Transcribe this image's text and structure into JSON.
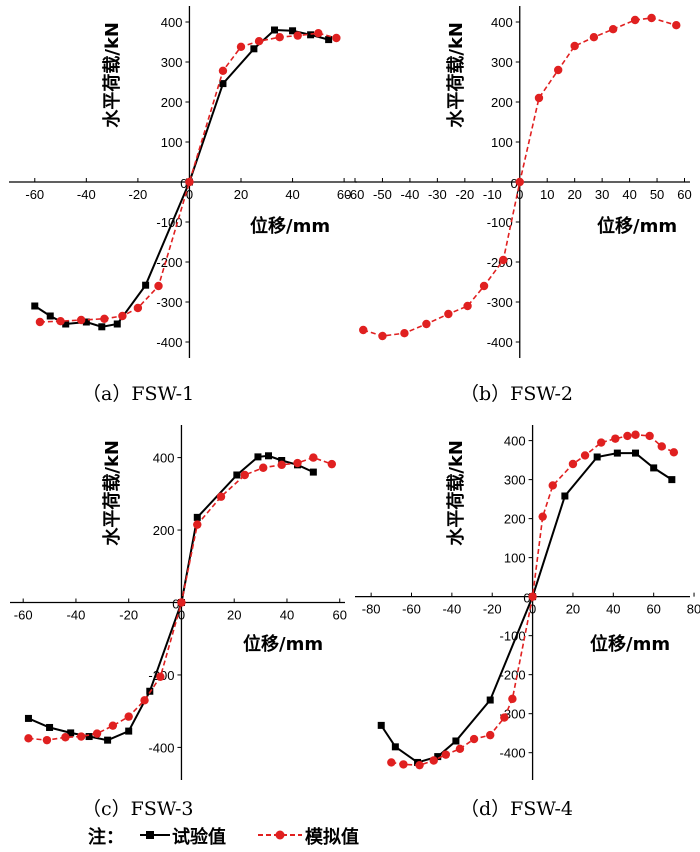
{
  "chart_data": [
    {
      "type": "line",
      "caption": "（a）FSW-1",
      "xlabel": "位移/mm",
      "ylabel": "水平荷载/kN",
      "xlim": [
        -70,
        65
      ],
      "ylim": [
        -440,
        440
      ],
      "xticks": [
        -60,
        -40,
        -20,
        0,
        20,
        40,
        60
      ],
      "yticks": [
        -400,
        -300,
        -200,
        -100,
        0,
        100,
        200,
        300,
        400
      ],
      "series": [
        {
          "name": "试验值",
          "color": "#000000",
          "x": [
            -60,
            -54,
            -48,
            -40,
            -34,
            -28,
            -17,
            0,
            13,
            25,
            33,
            40,
            47,
            54
          ],
          "y": [
            -310,
            -335,
            -355,
            -350,
            -362,
            -355,
            -258,
            0,
            246,
            333,
            380,
            378,
            368,
            356
          ]
        },
        {
          "name": "模拟值",
          "color": "#e02020",
          "x": [
            -58,
            -50,
            -42,
            -33,
            -26,
            -20,
            -12,
            0,
            13,
            20,
            27,
            35,
            42,
            50,
            57
          ],
          "y": [
            -350,
            -348,
            -345,
            -342,
            -335,
            -315,
            -260,
            0,
            278,
            338,
            352,
            362,
            366,
            372,
            360
          ]
        }
      ]
    },
    {
      "type": "line",
      "caption": "（b）FSW-2",
      "xlabel": "位移/mm",
      "ylabel": "水平荷载/kN",
      "xlim": [
        -60,
        62
      ],
      "ylim": [
        -440,
        440
      ],
      "xticks": [
        -60,
        -50,
        -40,
        -30,
        -20,
        -10,
        0,
        10,
        20,
        30,
        40,
        50,
        60
      ],
      "yticks": [
        -400,
        -300,
        -200,
        -100,
        0,
        100,
        200,
        300,
        400
      ],
      "series": [
        {
          "name": "模拟值",
          "color": "#e02020",
          "x": [
            -57,
            -50,
            -42,
            -34,
            -26,
            -19,
            -13,
            -6,
            0,
            7,
            14,
            20,
            27,
            34,
            42,
            48,
            57
          ],
          "y": [
            -370,
            -385,
            -378,
            -355,
            -330,
            -310,
            -260,
            -195,
            0,
            210,
            280,
            340,
            362,
            382,
            405,
            410,
            392
          ]
        }
      ]
    },
    {
      "type": "line",
      "caption": "（c）FSW-3",
      "xlabel": "位移/mm",
      "ylabel": "水平荷载/kN",
      "xlim": [
        -65,
        62
      ],
      "ylim": [
        -490,
        490
      ],
      "xticks": [
        -60,
        -40,
        -20,
        0,
        20,
        40,
        60
      ],
      "yticks": [
        -400,
        -200,
        0,
        200,
        400
      ],
      "series": [
        {
          "name": "试验值",
          "color": "#000000",
          "x": [
            -58,
            -50,
            -42,
            -35,
            -28,
            -20,
            -12,
            0,
            6,
            21,
            29,
            33,
            38,
            44,
            50
          ],
          "y": [
            -320,
            -345,
            -360,
            -370,
            -380,
            -355,
            -245,
            0,
            235,
            352,
            402,
            405,
            392,
            380,
            360
          ]
        },
        {
          "name": "模拟值",
          "color": "#e02020",
          "x": [
            -58,
            -51,
            -44,
            -38,
            -32,
            -26,
            -20,
            -14,
            -8,
            0,
            6,
            15,
            24,
            31,
            38,
            44,
            50,
            57
          ],
          "y": [
            -375,
            -380,
            -372,
            -370,
            -362,
            -340,
            -315,
            -270,
            -205,
            0,
            215,
            292,
            352,
            372,
            380,
            385,
            400,
            382
          ]
        }
      ]
    },
    {
      "type": "line",
      "caption": "（d）FSW-4",
      "xlabel": "位移/mm",
      "ylabel": "水平荷载/kN",
      "xlim": [
        -88,
        78
      ],
      "ylim": [
        -470,
        440
      ],
      "xticks": [
        -80,
        -60,
        -40,
        -20,
        0,
        20,
        40,
        60,
        80
      ],
      "yticks": [
        -400,
        -300,
        -200,
        -100,
        0,
        100,
        200,
        300,
        400
      ],
      "series": [
        {
          "name": "试验值",
          "color": "#000000",
          "x": [
            -75,
            -68,
            -57,
            -47,
            -38,
            -21,
            0,
            16,
            32,
            42,
            51,
            60,
            69
          ],
          "y": [
            -330,
            -385,
            -425,
            -410,
            -370,
            -265,
            0,
            258,
            358,
            368,
            368,
            330,
            300
          ]
        },
        {
          "name": "模拟值",
          "color": "#e02020",
          "x": [
            -70,
            -64,
            -56,
            -49,
            -43,
            -36,
            -29,
            -21,
            -14,
            -10,
            0,
            5,
            10,
            20,
            26,
            34,
            41,
            47,
            51,
            58,
            64,
            70
          ],
          "y": [
            -425,
            -430,
            -432,
            -420,
            -405,
            -390,
            -365,
            -355,
            -310,
            -262,
            0,
            205,
            285,
            340,
            362,
            395,
            405,
            412,
            415,
            412,
            385,
            370
          ]
        }
      ]
    }
  ],
  "legend": {
    "prefix": "注：",
    "items": [
      {
        "label": "试验值",
        "color": "#000000",
        "marker": "square",
        "dash": "solid"
      },
      {
        "label": "模拟值",
        "color": "#e02020",
        "marker": "circle",
        "dash": "dashed"
      }
    ]
  }
}
